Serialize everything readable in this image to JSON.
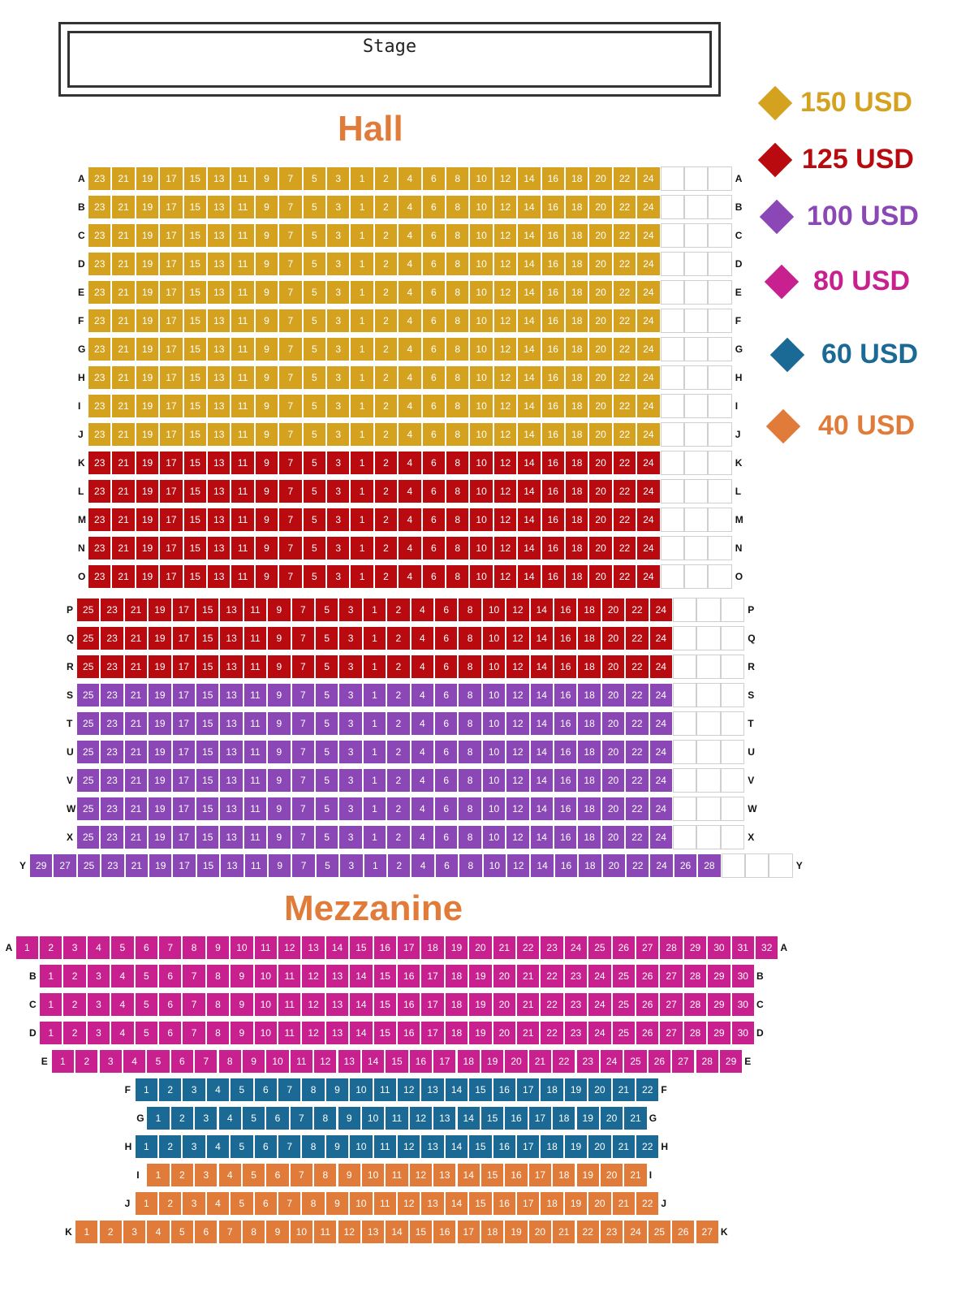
{
  "stage": {
    "label": "Stage"
  },
  "titles": {
    "hall": "Hall",
    "mezzanine": "Mezzanine"
  },
  "colors": {
    "p150": "#d4a21f",
    "p125": "#b80a0f",
    "p100": "#8a47b5",
    "p80": "#c9208f",
    "p60": "#1a6a95",
    "p40": "#e07b39"
  },
  "legend": [
    {
      "label": "150 USD",
      "color_key": "p150",
      "icon": "diamond-icon"
    },
    {
      "label": "125 USD",
      "color_key": "p125",
      "icon": "diamond-icon"
    },
    {
      "label": "100 USD",
      "color_key": "p100",
      "icon": "diamond-icon"
    },
    {
      "label": "80 USD",
      "color_key": "p80",
      "icon": "diamond-icon"
    },
    {
      "label": "60 USD",
      "color_key": "p60",
      "icon": "diamond-icon"
    },
    {
      "label": "40 USD",
      "color_key": "p40",
      "icon": "diamond-icon"
    }
  ],
  "hall": {
    "rows": [
      {
        "label": "A",
        "price": "p150",
        "seats": [
          "23",
          "21",
          "19",
          "17",
          "15",
          "13",
          "11",
          "9",
          "7",
          "5",
          "3",
          "1",
          "2",
          "4",
          "6",
          "8",
          "10",
          "12",
          "14",
          "16",
          "18",
          "20",
          "22",
          "24"
        ],
        "empty": 3
      },
      {
        "label": "B",
        "price": "p150",
        "seats": [
          "23",
          "21",
          "19",
          "17",
          "15",
          "13",
          "11",
          "9",
          "7",
          "5",
          "3",
          "1",
          "2",
          "4",
          "6",
          "8",
          "10",
          "12",
          "14",
          "16",
          "18",
          "20",
          "22",
          "24"
        ],
        "empty": 3
      },
      {
        "label": "C",
        "price": "p150",
        "seats": [
          "23",
          "21",
          "19",
          "17",
          "15",
          "13",
          "11",
          "9",
          "7",
          "5",
          "3",
          "1",
          "2",
          "4",
          "6",
          "8",
          "10",
          "12",
          "14",
          "16",
          "18",
          "20",
          "22",
          "24"
        ],
        "empty": 3
      },
      {
        "label": "D",
        "price": "p150",
        "seats": [
          "23",
          "21",
          "19",
          "17",
          "15",
          "13",
          "11",
          "9",
          "7",
          "5",
          "3",
          "1",
          "2",
          "4",
          "6",
          "8",
          "10",
          "12",
          "14",
          "16",
          "18",
          "20",
          "22",
          "24"
        ],
        "empty": 3
      },
      {
        "label": "E",
        "price": "p150",
        "seats": [
          "23",
          "21",
          "19",
          "17",
          "15",
          "13",
          "11",
          "9",
          "7",
          "5",
          "3",
          "1",
          "2",
          "4",
          "6",
          "8",
          "10",
          "12",
          "14",
          "16",
          "18",
          "20",
          "22",
          "24"
        ],
        "empty": 3
      },
      {
        "label": "F",
        "price": "p150",
        "seats": [
          "23",
          "21",
          "19",
          "17",
          "15",
          "13",
          "11",
          "9",
          "7",
          "5",
          "3",
          "1",
          "2",
          "4",
          "6",
          "8",
          "10",
          "12",
          "14",
          "16",
          "18",
          "20",
          "22",
          "24"
        ],
        "empty": 3
      },
      {
        "label": "G",
        "price": "p150",
        "seats": [
          "23",
          "21",
          "19",
          "17",
          "15",
          "13",
          "11",
          "9",
          "7",
          "5",
          "3",
          "1",
          "2",
          "4",
          "6",
          "8",
          "10",
          "12",
          "14",
          "16",
          "18",
          "20",
          "22",
          "24"
        ],
        "empty": 3
      },
      {
        "label": "H",
        "price": "p150",
        "seats": [
          "23",
          "21",
          "19",
          "17",
          "15",
          "13",
          "11",
          "9",
          "7",
          "5",
          "3",
          "1",
          "2",
          "4",
          "6",
          "8",
          "10",
          "12",
          "14",
          "16",
          "18",
          "20",
          "22",
          "24"
        ],
        "empty": 3
      },
      {
        "label": "I",
        "price": "p150",
        "seats": [
          "23",
          "21",
          "19",
          "17",
          "15",
          "13",
          "11",
          "9",
          "7",
          "5",
          "3",
          "1",
          "2",
          "4",
          "6",
          "8",
          "10",
          "12",
          "14",
          "16",
          "18",
          "20",
          "22",
          "24"
        ],
        "empty": 3
      },
      {
        "label": "J",
        "price": "p150",
        "seats": [
          "23",
          "21",
          "19",
          "17",
          "15",
          "13",
          "11",
          "9",
          "7",
          "5",
          "3",
          "1",
          "2",
          "4",
          "6",
          "8",
          "10",
          "12",
          "14",
          "16",
          "18",
          "20",
          "22",
          "24"
        ],
        "empty": 3
      },
      {
        "label": "K",
        "price": "p125",
        "seats": [
          "23",
          "21",
          "19",
          "17",
          "15",
          "13",
          "11",
          "9",
          "7",
          "5",
          "3",
          "1",
          "2",
          "4",
          "6",
          "8",
          "10",
          "12",
          "14",
          "16",
          "18",
          "20",
          "22",
          "24"
        ],
        "empty": 3
      },
      {
        "label": "L",
        "price": "p125",
        "seats": [
          "23",
          "21",
          "19",
          "17",
          "15",
          "13",
          "11",
          "9",
          "7",
          "5",
          "3",
          "1",
          "2",
          "4",
          "6",
          "8",
          "10",
          "12",
          "14",
          "16",
          "18",
          "20",
          "22",
          "24"
        ],
        "empty": 3
      },
      {
        "label": "M",
        "price": "p125",
        "seats": [
          "23",
          "21",
          "19",
          "17",
          "15",
          "13",
          "11",
          "9",
          "7",
          "5",
          "3",
          "1",
          "2",
          "4",
          "6",
          "8",
          "10",
          "12",
          "14",
          "16",
          "18",
          "20",
          "22",
          "24"
        ],
        "empty": 3
      },
      {
        "label": "N",
        "price": "p125",
        "seats": [
          "23",
          "21",
          "19",
          "17",
          "15",
          "13",
          "11",
          "9",
          "7",
          "5",
          "3",
          "1",
          "2",
          "4",
          "6",
          "8",
          "10",
          "12",
          "14",
          "16",
          "18",
          "20",
          "22",
          "24"
        ],
        "empty": 3
      },
      {
        "label": "O",
        "price": "p125",
        "seats": [
          "23",
          "21",
          "19",
          "17",
          "15",
          "13",
          "11",
          "9",
          "7",
          "5",
          "3",
          "1",
          "2",
          "4",
          "6",
          "8",
          "10",
          "12",
          "14",
          "16",
          "18",
          "20",
          "22",
          "24"
        ],
        "empty": 3
      },
      {
        "label": "P",
        "price": "p125",
        "seats": [
          "25",
          "23",
          "21",
          "19",
          "17",
          "15",
          "13",
          "11",
          "9",
          "7",
          "5",
          "3",
          "1",
          "2",
          "4",
          "6",
          "8",
          "10",
          "12",
          "14",
          "16",
          "18",
          "20",
          "22",
          "24"
        ],
        "empty": 3
      },
      {
        "label": "Q",
        "price": "p125",
        "seats": [
          "25",
          "23",
          "21",
          "19",
          "17",
          "15",
          "13",
          "11",
          "9",
          "7",
          "5",
          "3",
          "1",
          "2",
          "4",
          "6",
          "8",
          "10",
          "12",
          "14",
          "16",
          "18",
          "20",
          "22",
          "24"
        ],
        "empty": 3
      },
      {
        "label": "R",
        "price": "p125",
        "seats": [
          "25",
          "23",
          "21",
          "19",
          "17",
          "15",
          "13",
          "11",
          "9",
          "7",
          "5",
          "3",
          "1",
          "2",
          "4",
          "6",
          "8",
          "10",
          "12",
          "14",
          "16",
          "18",
          "20",
          "22",
          "24"
        ],
        "empty": 3
      },
      {
        "label": "S",
        "price": "p100",
        "seats": [
          "25",
          "23",
          "21",
          "19",
          "17",
          "15",
          "13",
          "11",
          "9",
          "7",
          "5",
          "3",
          "1",
          "2",
          "4",
          "6",
          "8",
          "10",
          "12",
          "14",
          "16",
          "18",
          "20",
          "22",
          "24"
        ],
        "empty": 3
      },
      {
        "label": "T",
        "price": "p100",
        "seats": [
          "25",
          "23",
          "21",
          "19",
          "17",
          "15",
          "13",
          "11",
          "9",
          "7",
          "5",
          "3",
          "1",
          "2",
          "4",
          "6",
          "8",
          "10",
          "12",
          "14",
          "16",
          "18",
          "20",
          "22",
          "24"
        ],
        "empty": 3
      },
      {
        "label": "U",
        "price": "p100",
        "seats": [
          "25",
          "23",
          "21",
          "19",
          "17",
          "15",
          "13",
          "11",
          "9",
          "7",
          "5",
          "3",
          "1",
          "2",
          "4",
          "6",
          "8",
          "10",
          "12",
          "14",
          "16",
          "18",
          "20",
          "22",
          "24"
        ],
        "empty": 3
      },
      {
        "label": "V",
        "price": "p100",
        "seats": [
          "25",
          "23",
          "21",
          "19",
          "17",
          "15",
          "13",
          "11",
          "9",
          "7",
          "5",
          "3",
          "1",
          "2",
          "4",
          "6",
          "8",
          "10",
          "12",
          "14",
          "16",
          "18",
          "20",
          "22",
          "24"
        ],
        "empty": 3
      },
      {
        "label": "W",
        "price": "p100",
        "seats": [
          "25",
          "23",
          "21",
          "19",
          "17",
          "15",
          "13",
          "11",
          "9",
          "7",
          "5",
          "3",
          "1",
          "2",
          "4",
          "6",
          "8",
          "10",
          "12",
          "14",
          "16",
          "18",
          "20",
          "22",
          "24"
        ],
        "empty": 3
      },
      {
        "label": "X",
        "price": "p100",
        "seats": [
          "25",
          "23",
          "21",
          "19",
          "17",
          "15",
          "13",
          "11",
          "9",
          "7",
          "5",
          "3",
          "1",
          "2",
          "4",
          "6",
          "8",
          "10",
          "12",
          "14",
          "16",
          "18",
          "20",
          "22",
          "24"
        ],
        "empty": 3
      },
      {
        "label": "Y",
        "price": "p100",
        "seats": [
          "29",
          "27",
          "25",
          "23",
          "21",
          "19",
          "17",
          "15",
          "13",
          "11",
          "9",
          "7",
          "5",
          "3",
          "1",
          "2",
          "4",
          "6",
          "8",
          "10",
          "12",
          "14",
          "16",
          "18",
          "20",
          "22",
          "24",
          "26",
          "28"
        ],
        "empty": 3
      }
    ]
  },
  "mezzanine": {
    "rows": [
      {
        "label": "A",
        "price": "p80",
        "seats": [
          "1",
          "2",
          "3",
          "4",
          "5",
          "6",
          "7",
          "8",
          "9",
          "10",
          "11",
          "12",
          "13",
          "14",
          "15",
          "16",
          "17",
          "18",
          "19",
          "20",
          "21",
          "22",
          "23",
          "24",
          "25",
          "26",
          "27",
          "28",
          "29",
          "30",
          "31",
          "32"
        ]
      },
      {
        "label": "B",
        "price": "p80",
        "seats": [
          "1",
          "2",
          "3",
          "4",
          "5",
          "6",
          "7",
          "8",
          "9",
          "10",
          "11",
          "12",
          "13",
          "14",
          "15",
          "16",
          "17",
          "18",
          "19",
          "20",
          "21",
          "22",
          "23",
          "24",
          "25",
          "26",
          "27",
          "28",
          "29",
          "30"
        ]
      },
      {
        "label": "C",
        "price": "p80",
        "seats": [
          "1",
          "2",
          "3",
          "4",
          "5",
          "6",
          "7",
          "8",
          "9",
          "10",
          "11",
          "12",
          "13",
          "14",
          "15",
          "16",
          "17",
          "18",
          "19",
          "20",
          "21",
          "22",
          "23",
          "24",
          "25",
          "26",
          "27",
          "28",
          "29",
          "30"
        ]
      },
      {
        "label": "D",
        "price": "p80",
        "seats": [
          "1",
          "2",
          "3",
          "4",
          "5",
          "6",
          "7",
          "8",
          "9",
          "10",
          "11",
          "12",
          "13",
          "14",
          "15",
          "16",
          "17",
          "18",
          "19",
          "20",
          "21",
          "22",
          "23",
          "24",
          "25",
          "26",
          "27",
          "28",
          "29",
          "30"
        ]
      },
      {
        "label": "E",
        "price": "p80",
        "seats": [
          "1",
          "2",
          "3",
          "4",
          "5",
          "6",
          "7",
          "8",
          "9",
          "10",
          "11",
          "12",
          "13",
          "14",
          "15",
          "16",
          "17",
          "18",
          "19",
          "20",
          "21",
          "22",
          "23",
          "24",
          "25",
          "26",
          "27",
          "28",
          "29"
        ]
      },
      {
        "label": "F",
        "price": "p60",
        "seats": [
          "1",
          "2",
          "3",
          "4",
          "5",
          "6",
          "7",
          "8",
          "9",
          "10",
          "11",
          "12",
          "13",
          "14",
          "15",
          "16",
          "17",
          "18",
          "19",
          "20",
          "21",
          "22"
        ]
      },
      {
        "label": "G",
        "price": "p60",
        "seats": [
          "1",
          "2",
          "3",
          "4",
          "5",
          "6",
          "7",
          "8",
          "9",
          "10",
          "11",
          "12",
          "13",
          "14",
          "15",
          "16",
          "17",
          "18",
          "19",
          "20",
          "21"
        ]
      },
      {
        "label": "H",
        "price": "p60",
        "seats": [
          "1",
          "2",
          "3",
          "4",
          "5",
          "6",
          "7",
          "8",
          "9",
          "10",
          "11",
          "12",
          "13",
          "14",
          "15",
          "16",
          "17",
          "18",
          "19",
          "20",
          "21",
          "22"
        ]
      },
      {
        "label": "I",
        "price": "p40",
        "seats": [
          "1",
          "2",
          "3",
          "4",
          "5",
          "6",
          "7",
          "8",
          "9",
          "10",
          "11",
          "12",
          "13",
          "14",
          "15",
          "16",
          "17",
          "18",
          "19",
          "20",
          "21"
        ]
      },
      {
        "label": "J",
        "price": "p40",
        "seats": [
          "1",
          "2",
          "3",
          "4",
          "5",
          "6",
          "7",
          "8",
          "9",
          "10",
          "11",
          "12",
          "13",
          "14",
          "15",
          "16",
          "17",
          "18",
          "19",
          "20",
          "21",
          "22"
        ]
      },
      {
        "label": "K",
        "price": "p40",
        "seats": [
          "1",
          "2",
          "3",
          "4",
          "5",
          "6",
          "7",
          "8",
          "9",
          "10",
          "11",
          "12",
          "13",
          "14",
          "15",
          "16",
          "17",
          "18",
          "19",
          "20",
          "21",
          "22",
          "23",
          "24",
          "25",
          "26",
          "27"
        ]
      }
    ]
  }
}
